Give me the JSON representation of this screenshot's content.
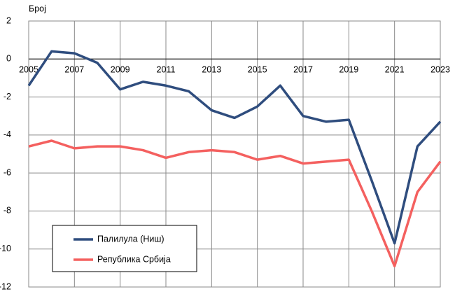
{
  "chart_data": {
    "type": "line",
    "y_label": "Број",
    "x": [
      2005,
      2006,
      2007,
      2008,
      2009,
      2010,
      2011,
      2012,
      2013,
      2014,
      2015,
      2016,
      2017,
      2018,
      2019,
      2020,
      2021,
      2022,
      2023
    ],
    "xlim": [
      2005,
      2023
    ],
    "xticks": [
      2005,
      2007,
      2009,
      2011,
      2013,
      2015,
      2017,
      2019,
      2021,
      2023
    ],
    "ylim": [
      -12,
      2
    ],
    "yticks": [
      -12,
      -10,
      -8,
      -6,
      -4,
      -2,
      0,
      2
    ],
    "grid": true,
    "legend": "lower left",
    "series": [
      {
        "name": "Палилула (Ниш)",
        "color": "#2f4d7e",
        "values": [
          -1.4,
          0.4,
          0.3,
          -0.2,
          -1.6,
          -1.2,
          -1.4,
          -1.7,
          -2.7,
          -3.1,
          -2.5,
          -1.4,
          -3.0,
          -3.3,
          -3.2,
          -6.4,
          -9.7,
          -4.6,
          -3.3
        ]
      },
      {
        "name": "Република Србија",
        "color": "#f4605f",
        "values": [
          -4.6,
          -4.3,
          -4.7,
          -4.6,
          -4.6,
          -4.8,
          -5.2,
          -4.9,
          -4.8,
          -4.9,
          -5.3,
          -5.1,
          -5.5,
          -5.4,
          -5.3,
          -8.0,
          -10.9,
          -7.0,
          -5.4
        ]
      }
    ]
  }
}
